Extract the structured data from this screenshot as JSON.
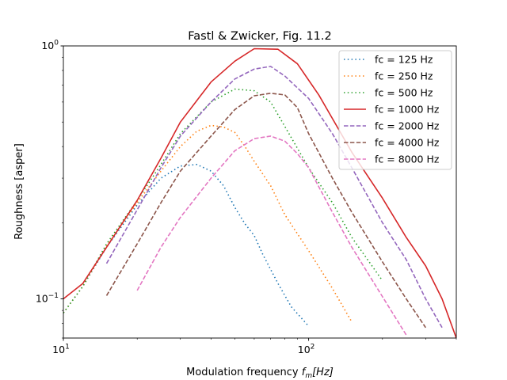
{
  "chart_data": {
    "type": "line",
    "title": "Fastl & Zwicker, Fig. 11.2",
    "xlabel_prefix": "Modulation frequency ",
    "xlabel_var": "f",
    "xlabel_sub": "m",
    "xlabel_suffix": "[Hz]",
    "ylabel": "Roughness [asper]",
    "xscale": "log",
    "yscale": "log",
    "xlim": [
      10,
      400
    ],
    "ylim": [
      0.07,
      1.0
    ],
    "grid": false,
    "legend_position": "top-right",
    "x_tick_labels": [
      {
        "value": 10,
        "base": "10",
        "exp": "1"
      },
      {
        "value": 100,
        "base": "10",
        "exp": "2"
      }
    ],
    "y_tick_labels": [
      {
        "value": 0.1,
        "base": "10",
        "exp": "−1"
      },
      {
        "value": 1.0,
        "base": "10",
        "exp": "0"
      }
    ],
    "series": [
      {
        "name": "fc = 125 Hz",
        "color": "#1f77b4",
        "dash": "dotted",
        "points": [
          [
            10,
            0.088
          ],
          [
            12,
            0.112
          ],
          [
            15,
            0.16
          ],
          [
            20,
            0.235
          ],
          [
            25,
            0.3
          ],
          [
            30,
            0.335
          ],
          [
            35,
            0.34
          ],
          [
            40,
            0.32
          ],
          [
            45,
            0.28
          ],
          [
            50,
            0.23
          ],
          [
            55,
            0.198
          ],
          [
            60,
            0.178
          ],
          [
            65,
            0.15
          ],
          [
            75,
            0.115
          ],
          [
            85,
            0.093
          ],
          [
            100,
            0.078
          ]
        ]
      },
      {
        "name": "fc = 250 Hz",
        "color": "#ff7f0e",
        "dash": "dotted",
        "points": [
          [
            10,
            0.088
          ],
          [
            12,
            0.112
          ],
          [
            15,
            0.162
          ],
          [
            20,
            0.24
          ],
          [
            25,
            0.32
          ],
          [
            30,
            0.4
          ],
          [
            35,
            0.46
          ],
          [
            40,
            0.485
          ],
          [
            45,
            0.478
          ],
          [
            50,
            0.455
          ],
          [
            55,
            0.4
          ],
          [
            60,
            0.35
          ],
          [
            70,
            0.28
          ],
          [
            80,
            0.215
          ],
          [
            100,
            0.155
          ],
          [
            125,
            0.11
          ],
          [
            150,
            0.081
          ]
        ]
      },
      {
        "name": "fc = 500 Hz",
        "color": "#2ca02c",
        "dash": "dotted",
        "points": [
          [
            10,
            0.088
          ],
          [
            12,
            0.112
          ],
          [
            15,
            0.165
          ],
          [
            20,
            0.245
          ],
          [
            25,
            0.34
          ],
          [
            30,
            0.45
          ],
          [
            40,
            0.6
          ],
          [
            50,
            0.675
          ],
          [
            60,
            0.665
          ],
          [
            70,
            0.6
          ],
          [
            80,
            0.48
          ],
          [
            100,
            0.33
          ],
          [
            125,
            0.24
          ],
          [
            150,
            0.175
          ],
          [
            200,
            0.118
          ]
        ]
      },
      {
        "name": "fc = 1000 Hz",
        "color": "#d62728",
        "dash": "solid",
        "points": [
          [
            10,
            0.1
          ],
          [
            12,
            0.115
          ],
          [
            15,
            0.16
          ],
          [
            20,
            0.245
          ],
          [
            25,
            0.36
          ],
          [
            30,
            0.5
          ],
          [
            40,
            0.72
          ],
          [
            50,
            0.87
          ],
          [
            60,
            0.975
          ],
          [
            75,
            0.97
          ],
          [
            90,
            0.85
          ],
          [
            110,
            0.64
          ],
          [
            150,
            0.38
          ],
          [
            200,
            0.25
          ],
          [
            250,
            0.175
          ],
          [
            300,
            0.135
          ],
          [
            350,
            0.1
          ],
          [
            400,
            0.07
          ]
        ]
      },
      {
        "name": "fc = 2000 Hz",
        "color": "#9467bd",
        "dash": "dashed",
        "points": [
          [
            15,
            0.138
          ],
          [
            20,
            0.225
          ],
          [
            25,
            0.33
          ],
          [
            30,
            0.44
          ],
          [
            40,
            0.6
          ],
          [
            50,
            0.74
          ],
          [
            60,
            0.81
          ],
          [
            70,
            0.83
          ],
          [
            80,
            0.76
          ],
          [
            100,
            0.62
          ],
          [
            125,
            0.45
          ],
          [
            150,
            0.33
          ],
          [
            200,
            0.2
          ],
          [
            250,
            0.143
          ],
          [
            300,
            0.1
          ],
          [
            350,
            0.077
          ]
        ]
      },
      {
        "name": "fc = 4000 Hz",
        "color": "#8c564b",
        "dash": "dashed",
        "points": [
          [
            15,
            0.103
          ],
          [
            20,
            0.165
          ],
          [
            25,
            0.24
          ],
          [
            30,
            0.32
          ],
          [
            40,
            0.44
          ],
          [
            50,
            0.56
          ],
          [
            60,
            0.635
          ],
          [
            70,
            0.65
          ],
          [
            80,
            0.64
          ],
          [
            90,
            0.57
          ],
          [
            100,
            0.45
          ],
          [
            125,
            0.3
          ],
          [
            150,
            0.22
          ],
          [
            200,
            0.14
          ],
          [
            250,
            0.1
          ],
          [
            300,
            0.077
          ]
        ]
      },
      {
        "name": "fc = 8000 Hz",
        "color": "#e377c2",
        "dash": "dashed",
        "points": [
          [
            20,
            0.108
          ],
          [
            25,
            0.16
          ],
          [
            30,
            0.21
          ],
          [
            40,
            0.3
          ],
          [
            50,
            0.385
          ],
          [
            60,
            0.43
          ],
          [
            70,
            0.44
          ],
          [
            80,
            0.42
          ],
          [
            90,
            0.375
          ],
          [
            100,
            0.33
          ],
          [
            125,
            0.22
          ],
          [
            150,
            0.16
          ],
          [
            200,
            0.102
          ],
          [
            250,
            0.072
          ]
        ]
      }
    ]
  }
}
